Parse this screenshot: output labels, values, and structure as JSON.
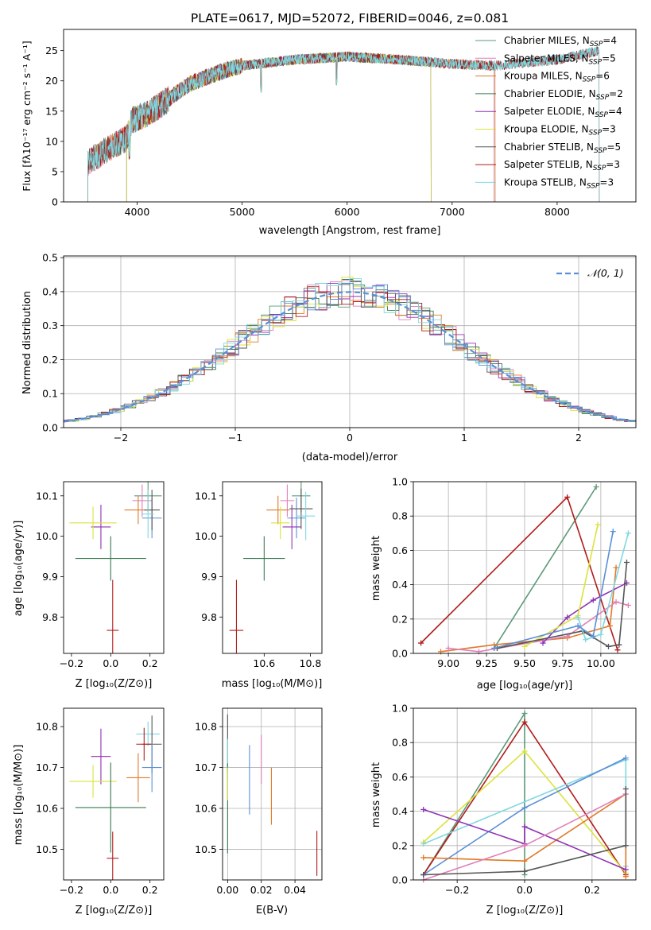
{
  "chart_data": [
    {
      "id": "spectrum",
      "type": "line",
      "title": "PLATE=0617, MJD=52072, FIBERID=0046, z=0.081",
      "xlabel": "wavelength [Angstrom, rest frame]",
      "ylabel": "Flux [fλ10⁻¹⁷ erg cm⁻² s⁻¹ A⁻¹]",
      "xlim": [
        3300,
        8750
      ],
      "ylim": [
        0,
        28.5
      ],
      "xticks": [
        4000,
        5000,
        6000,
        7000,
        8000
      ],
      "yticks": [
        0,
        5,
        10,
        15,
        20,
        25
      ],
      "grid": false,
      "legend_position": "top-right",
      "continuum": [
        [
          3530,
          6.5
        ],
        [
          3700,
          8.5
        ],
        [
          3900,
          10.5
        ],
        [
          3950,
          13.5
        ],
        [
          4100,
          14.5
        ],
        [
          4300,
          17
        ],
        [
          4500,
          19.5
        ],
        [
          4800,
          21.5
        ],
        [
          5000,
          22.5
        ],
        [
          5500,
          23.5
        ],
        [
          6000,
          24
        ],
        [
          6500,
          23.5
        ],
        [
          7000,
          22.8
        ],
        [
          7400,
          22.5
        ],
        [
          8000,
          23.5
        ],
        [
          8400,
          25
        ]
      ],
      "series": [
        {
          "name": "Chabrier MILES, N_SSP=4",
          "color": "#5b9a78",
          "xmin": 3530,
          "xmax": 7400
        },
        {
          "name": "Salpeter MILES, N_SSP=5",
          "color": "#e07fb8",
          "xmin": 3530,
          "xmax": 7400
        },
        {
          "name": "Kroupa MILES, N_SSP=6",
          "color": "#e07a28",
          "xmin": 3530,
          "xmax": 7410
        },
        {
          "name": "Chabrier ELODIE, N_SSP=2",
          "color": "#3a7a52",
          "xmin": 3900,
          "xmax": 6800
        },
        {
          "name": "Salpeter ELODIE, N_SSP=4",
          "color": "#8f33b5",
          "xmin": 3900,
          "xmax": 6800
        },
        {
          "name": "Kroupa ELODIE, N_SSP=3",
          "color": "#dde23a",
          "xmin": 3900,
          "xmax": 6800
        },
        {
          "name": "Chabrier STELIB, N_SSP=5",
          "color": "#555555",
          "xmin": 3530,
          "xmax": 8400
        },
        {
          "name": "Salpeter STELIB, N_SSP=3",
          "color": "#b11b1b",
          "xmin": 3530,
          "xmax": 8400
        },
        {
          "name": "Kroupa STELIB, N_SSP=3",
          "color": "#7fd8e0",
          "xmin": 3530,
          "xmax": 8400
        }
      ]
    },
    {
      "id": "residuals",
      "type": "line",
      "xlabel": "(data-model)/error",
      "ylabel": "Normed distribution",
      "xlim": [
        -2.5,
        2.5
      ],
      "ylim": [
        0,
        0.505
      ],
      "xticks": [
        -2,
        -1,
        0,
        1,
        2
      ],
      "yticks": [
        0.0,
        0.1,
        0.2,
        0.3,
        0.4,
        0.5
      ],
      "grid": true,
      "legend_position": "top-right",
      "legend": "𝒩(0, 1)",
      "normal_curve_color": "#5b8fd6",
      "bin_width": 0.1,
      "hist_colors": [
        "#5b9a78",
        "#e07fb8",
        "#e07a28",
        "#3a7a52",
        "#8f33b5",
        "#dde23a",
        "#555555",
        "#b11b1b",
        "#7fd8e0",
        "#5b8fd6"
      ]
    },
    {
      "id": "age-vs-Z",
      "type": "scatter",
      "xlabel": "Z [log₁₀(Z/Z⊙)]",
      "ylabel": "age  [log₁₀(age/yr)]",
      "xlim": [
        -0.24,
        0.27
      ],
      "ylim": [
        9.71,
        10.135
      ],
      "xticks": [
        -0.2,
        0.0,
        0.2
      ],
      "yticks": [
        9.8,
        9.9,
        10.0,
        10.1
      ],
      "grid": false,
      "points": [
        {
          "x": 0.19,
          "y": 10.1,
          "xerr": 0.07,
          "yerr": 0.04,
          "color": "#5b9a78"
        },
        {
          "x": 0.16,
          "y": 10.088,
          "xerr": 0.05,
          "yerr": 0.04,
          "color": "#e07fb8"
        },
        {
          "x": 0.14,
          "y": 10.065,
          "xerr": 0.07,
          "yerr": 0.035,
          "color": "#e07a28"
        },
        {
          "x": 0.21,
          "y": 10.045,
          "xerr": 0.05,
          "yerr": 0.05,
          "color": "#5b8fd6"
        },
        {
          "x": -0.05,
          "y": 10.023,
          "xerr": 0.05,
          "yerr": 0.055,
          "color": "#8f33b5"
        },
        {
          "x": -0.09,
          "y": 10.033,
          "xerr": 0.12,
          "yerr": 0.04,
          "color": "#dde23a"
        },
        {
          "x": 0.0,
          "y": 9.945,
          "xerr": 0.18,
          "yerr": 0.055,
          "color": "#3a7a52"
        },
        {
          "x": 0.01,
          "y": 9.767,
          "xerr": 0.03,
          "yerr": 0.125,
          "color": "#b11b1b"
        },
        {
          "x": 0.21,
          "y": 10.065,
          "xerr": 0.04,
          "yerr": 0.05,
          "color": "#555555"
        },
        {
          "x": 0.19,
          "y": 10.055,
          "xerr": 0.03,
          "yerr": 0.06,
          "color": "#7fd8e0"
        }
      ]
    },
    {
      "id": "age-vs-mass",
      "type": "scatter",
      "xlabel": "mass [log₁₀(M/M⊙)]",
      "xlim": [
        10.42,
        10.85
      ],
      "ylim": [
        9.71,
        10.135
      ],
      "xticks": [
        10.6,
        10.8
      ],
      "yticks": [
        9.8,
        9.9,
        10.0,
        10.1
      ],
      "grid": false,
      "points": [
        {
          "x": 10.76,
          "y": 10.1,
          "xerr": 0.04,
          "yerr": 0.04,
          "color": "#5b9a78"
        },
        {
          "x": 10.7,
          "y": 10.088,
          "xerr": 0.03,
          "yerr": 0.04,
          "color": "#e07fb8"
        },
        {
          "x": 10.66,
          "y": 10.065,
          "xerr": 0.05,
          "yerr": 0.035,
          "color": "#e07a28"
        },
        {
          "x": 10.74,
          "y": 10.045,
          "xerr": 0.04,
          "yerr": 0.05,
          "color": "#5b8fd6"
        },
        {
          "x": 10.72,
          "y": 10.023,
          "xerr": 0.04,
          "yerr": 0.055,
          "color": "#8f33b5"
        },
        {
          "x": 10.67,
          "y": 10.033,
          "xerr": 0.04,
          "yerr": 0.04,
          "color": "#dde23a"
        },
        {
          "x": 10.6,
          "y": 9.945,
          "xerr": 0.09,
          "yerr": 0.055,
          "color": "#3a7a52"
        },
        {
          "x": 10.48,
          "y": 9.767,
          "xerr": 0.03,
          "yerr": 0.125,
          "color": "#b11b1b"
        },
        {
          "x": 10.76,
          "y": 10.068,
          "xerr": 0.05,
          "yerr": 0.05,
          "color": "#555555"
        },
        {
          "x": 10.78,
          "y": 10.05,
          "xerr": 0.04,
          "yerr": 0.06,
          "color": "#7fd8e0"
        }
      ]
    },
    {
      "id": "weight-vs-age",
      "type": "line",
      "xlabel": "age  [log₁₀(age/yr)]",
      "ylabel": "mass weight",
      "xlim": [
        8.77,
        10.23
      ],
      "ylim": [
        0,
        1.0
      ],
      "xticks": [
        9.0,
        9.25,
        9.5,
        9.75,
        10.0
      ],
      "yticks": [
        0.0,
        0.2,
        0.4,
        0.6,
        0.8,
        1.0
      ],
      "grid": true,
      "series": [
        {
          "color": "#5b9a78",
          "x": [
            9.3,
            9.97
          ],
          "y": [
            0.03,
            0.97
          ]
        },
        {
          "color": "#b11b1b",
          "x": [
            8.82,
            9.78,
            10.11
          ],
          "y": [
            0.06,
            0.91,
            0.02
          ]
        },
        {
          "color": "#e07a28",
          "x": [
            8.95,
            9.3,
            9.78,
            10.06,
            10.1
          ],
          "y": [
            0.01,
            0.05,
            0.09,
            0.16,
            0.5
          ]
        },
        {
          "color": "#e07fb8",
          "x": [
            9.0,
            9.2,
            9.78,
            10.1,
            10.18
          ],
          "y": [
            0.03,
            0.01,
            0.1,
            0.3,
            0.28
          ]
        },
        {
          "color": "#8f33b5",
          "x": [
            9.62,
            9.78,
            9.95,
            10.17
          ],
          "y": [
            0.06,
            0.21,
            0.31,
            0.41
          ]
        },
        {
          "color": "#dde23a",
          "x": [
            9.5,
            9.85,
            9.98
          ],
          "y": [
            0.04,
            0.22,
            0.75
          ]
        },
        {
          "color": "#555555",
          "x": [
            9.32,
            9.88,
            10.05,
            10.12,
            10.17
          ],
          "y": [
            0.03,
            0.13,
            0.04,
            0.05,
            0.53
          ]
        },
        {
          "color": "#7fd8e0",
          "x": [
            9.85,
            9.9,
            10.0,
            10.18
          ],
          "y": [
            0.21,
            0.08,
            0.11,
            0.7
          ]
        },
        {
          "color": "#5b8fd6",
          "x": [
            9.3,
            9.85,
            9.95,
            10.08
          ],
          "y": [
            0.03,
            0.16,
            0.1,
            0.71
          ]
        }
      ]
    },
    {
      "id": "mass-vs-Z",
      "type": "scatter",
      "xlabel": "Z [log₁₀(Z/Z⊙)]",
      "ylabel": "mass [log₁₀(M/M⊙)]",
      "xlim": [
        -0.24,
        0.27
      ],
      "ylim": [
        10.425,
        10.845
      ],
      "xticks": [
        -0.2,
        0.0,
        0.2
      ],
      "yticks": [
        10.5,
        10.6,
        10.7,
        10.8
      ],
      "grid": false,
      "points": [
        {
          "x": 0.19,
          "y": 10.782,
          "xerr": 0.06,
          "yerr": 0.03,
          "color": "#7fd8e0"
        },
        {
          "x": 0.21,
          "y": 10.757,
          "xerr": 0.05,
          "yerr": 0.07,
          "color": "#555555"
        },
        {
          "x": 0.17,
          "y": 10.757,
          "xerr": 0.04,
          "yerr": 0.04,
          "color": "#b11b1b"
        },
        {
          "x": 0.21,
          "y": 10.7,
          "xerr": 0.05,
          "yerr": 0.06,
          "color": "#5b8fd6"
        },
        {
          "x": 0.14,
          "y": 10.675,
          "xerr": 0.06,
          "yerr": 0.06,
          "color": "#e07a28"
        },
        {
          "x": -0.05,
          "y": 10.727,
          "xerr": 0.05,
          "yerr": 0.068,
          "color": "#8f33b5"
        },
        {
          "x": -0.09,
          "y": 10.666,
          "xerr": 0.12,
          "yerr": 0.04,
          "color": "#dde23a"
        },
        {
          "x": 0.0,
          "y": 10.602,
          "xerr": 0.18,
          "yerr": 0.11,
          "color": "#3a7a52"
        },
        {
          "x": 0.01,
          "y": 10.478,
          "xerr": 0.03,
          "yerr": 0.065,
          "color": "#b11b1b"
        }
      ]
    },
    {
      "id": "mass-vs-EBV",
      "type": "scatter",
      "xlabel": "E(B-V)",
      "xlim": [
        -0.003,
        0.056
      ],
      "ylim": [
        10.425,
        10.845
      ],
      "xticks": [
        0.0,
        0.02,
        0.04
      ],
      "yticks": [
        10.5,
        10.6,
        10.7,
        10.8
      ],
      "grid": true,
      "points": [
        {
          "x": 0.0,
          "y": 10.76,
          "yerr": 0.07,
          "color": "#555555"
        },
        {
          "x": 0.0,
          "y": 10.72,
          "yerr": 0.05,
          "color": "#7fd8e0"
        },
        {
          "x": 0.0,
          "y": 10.6,
          "yerr": 0.11,
          "color": "#3a7a52"
        },
        {
          "x": 0.0,
          "y": 10.66,
          "yerr": 0.04,
          "color": "#dde23a"
        },
        {
          "x": 0.013,
          "y": 10.67,
          "yerr": 0.085,
          "color": "#5b8fd6"
        },
        {
          "x": 0.02,
          "y": 10.72,
          "yerr": 0.06,
          "color": "#e07fb8"
        },
        {
          "x": 0.026,
          "y": 10.63,
          "yerr": 0.07,
          "color": "#e07a28"
        },
        {
          "x": 0.053,
          "y": 10.49,
          "yerr": 0.055,
          "color": "#b11b1b"
        }
      ]
    },
    {
      "id": "weight-vs-Z",
      "type": "line",
      "xlabel": "Z [log₁₀(Z/Z⊙)]",
      "ylabel": "mass weight",
      "xlim": [
        -0.33,
        0.33
      ],
      "ylim": [
        0,
        1.0
      ],
      "xticks": [
        -0.2,
        0.0,
        0.2
      ],
      "yticks": [
        0.0,
        0.2,
        0.4,
        0.6,
        0.8,
        1.0
      ],
      "grid": true,
      "series": [
        {
          "color": "#5b9a78",
          "x": [
            -0.3,
            0.0,
            0.0
          ],
          "y": [
            0.03,
            0.97,
            0.03
          ]
        },
        {
          "color": "#b11b1b",
          "x": [
            -0.3,
            0.0,
            0.3
          ],
          "y": [
            0.03,
            0.92,
            0.03
          ]
        },
        {
          "color": "#dde23a",
          "x": [
            -0.3,
            0.0,
            0.3
          ],
          "y": [
            0.22,
            0.75,
            0.04
          ]
        },
        {
          "color": "#7fd8e0",
          "x": [
            -0.3,
            0.3,
            0.3
          ],
          "y": [
            0.21,
            0.7,
            0.08
          ]
        },
        {
          "color": "#5b8fd6",
          "x": [
            -0.3,
            0.0,
            0.3
          ],
          "y": [
            0.03,
            0.42,
            0.71
          ]
        },
        {
          "color": "#e07a28",
          "x": [
            -0.3,
            0.0,
            0.3,
            0.3
          ],
          "y": [
            0.13,
            0.11,
            0.5,
            0.02
          ]
        },
        {
          "color": "#8f33b5",
          "x": [
            -0.3,
            0.0,
            0.0,
            0.3
          ],
          "y": [
            0.41,
            0.21,
            0.31,
            0.06
          ]
        },
        {
          "color": "#e07fb8",
          "x": [
            -0.3,
            0.0,
            0.3
          ],
          "y": [
            0.0,
            0.2,
            0.5
          ]
        },
        {
          "color": "#555555",
          "x": [
            -0.3,
            0.0,
            0.3,
            0.3
          ],
          "y": [
            0.03,
            0.05,
            0.2,
            0.53
          ]
        }
      ]
    }
  ]
}
